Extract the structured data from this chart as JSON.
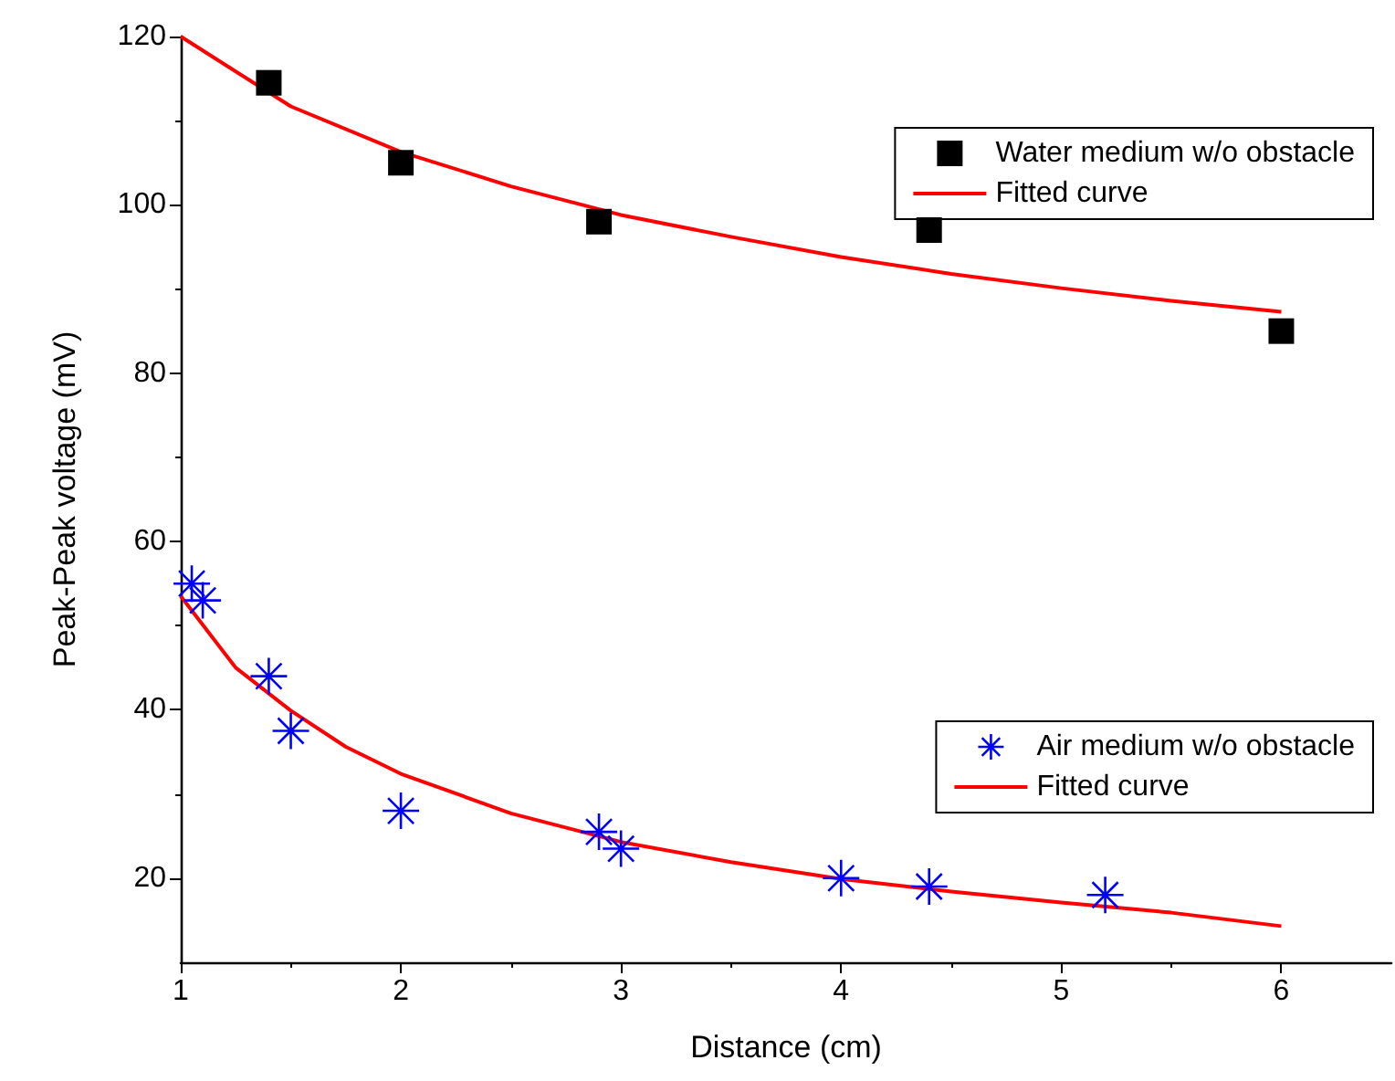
{
  "chart_data": {
    "type": "scatter",
    "xlabel": "Distance (cm)",
    "ylabel": "Peak-Peak voltage (mV)",
    "xlim": [
      1,
      6.5
    ],
    "xticks": [
      1,
      2,
      3,
      4,
      5,
      6
    ],
    "ylim": [
      10,
      120
    ],
    "yticks": [
      20,
      40,
      60,
      80,
      100,
      120
    ],
    "grid": false,
    "legend": "right",
    "series": [
      {
        "name": "Water medium w/o obstacle",
        "marker": "square",
        "color": "#000000",
        "x": [
          1.4,
          2,
          2.9,
          4.4,
          6
        ],
        "values": [
          114.5,
          105,
          98,
          97,
          85
        ]
      },
      {
        "name": "Fitted curve",
        "type": "line",
        "marker": "none",
        "color": "#ff0000",
        "x": [
          1,
          1.5,
          2,
          2.5,
          3,
          3.5,
          4,
          4.5,
          5,
          5.5,
          6
        ],
        "values": [
          120,
          111.7,
          106.3,
          102.2,
          98.8,
          96.2,
          93.8,
          91.8,
          90.1,
          88.6,
          87.3
        ]
      },
      {
        "name": "Air medium w/o obstacle",
        "marker": "cross",
        "color": "#0000ff",
        "x": [
          1.05,
          1.1,
          1.4,
          1.5,
          2,
          2.9,
          3,
          4,
          4.4,
          5.2
        ],
        "values": [
          55,
          53,
          44,
          37.5,
          28,
          25.5,
          23.5,
          20,
          19,
          18
        ]
      },
      {
        "name": "Fitted curve",
        "type": "line",
        "marker": "none",
        "color": "#ff0000",
        "x": [
          1,
          1.25,
          1.5,
          1.75,
          2,
          2.5,
          3,
          3.5,
          4,
          4.5,
          5,
          5.5,
          6
        ],
        "values": [
          53.5,
          45,
          39.9,
          35.6,
          32.4,
          27.7,
          24.3,
          21.9,
          19.9,
          18.4,
          17.1,
          15.9,
          14.3
        ]
      }
    ]
  }
}
